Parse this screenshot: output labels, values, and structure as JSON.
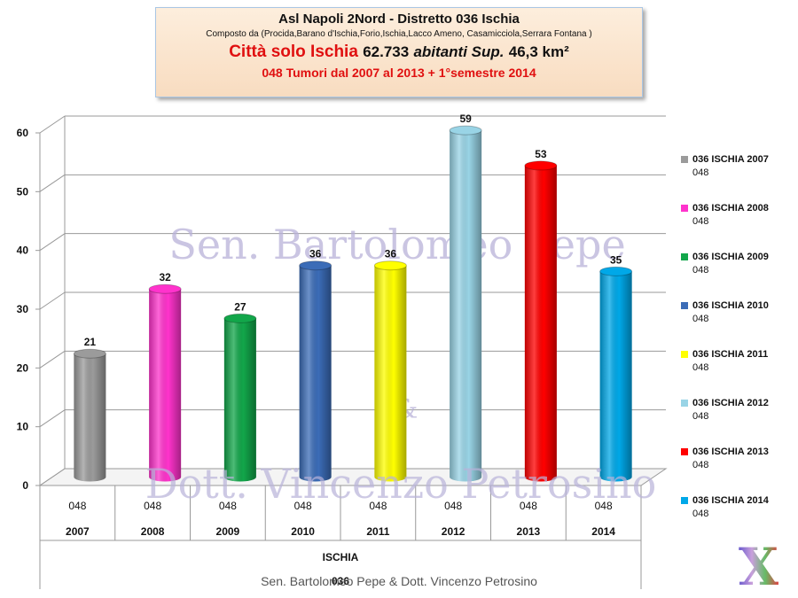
{
  "header": {
    "line1": "Asl Napoli  2Nord - Distretto 036 Ischia",
    "line2": "Composto da (Procida,Barano d'Ischia,Forio,Ischia,Lacco Ameno, Casamicciola,Serrara Fontana )",
    "line3_red": "Città solo Ischia",
    "line3_num": "62.733",
    "line3_ital": "abitanti Sup.",
    "line3_area": "46,3 km²",
    "line4": "048 Tumori  dal 2007 al 2013 + 1°semestre 2014"
  },
  "watermarks": {
    "top": "Sen. Bartolomeo Pepe",
    "amp": "&",
    "bottom": "Dott. Vincenzo Petrosino"
  },
  "footer": "Sen. Bartolomeo Pepe & Dott. Vincenzo Petrosino",
  "logo": "X",
  "chart_data": {
    "type": "bar",
    "yticks": [
      "0",
      "10",
      "20",
      "30",
      "40",
      "50",
      "60"
    ],
    "ylim": [
      0,
      60
    ],
    "grid": true,
    "legend_position": "right",
    "categories": [
      {
        "code": "048",
        "year": "2007"
      },
      {
        "code": "048",
        "year": "2008"
      },
      {
        "code": "048",
        "year": "2009"
      },
      {
        "code": "048",
        "year": "2010"
      },
      {
        "code": "048",
        "year": "2011"
      },
      {
        "code": "048",
        "year": "2012"
      },
      {
        "code": "048",
        "year": "2013"
      },
      {
        "code": "048",
        "year": "2014"
      }
    ],
    "group_labels": [
      "ISCHIA",
      "036"
    ],
    "series": [
      {
        "name": "036 ISCHIA 2007",
        "code": "048",
        "value": 21,
        "label": "21",
        "color": "#9b9b9b"
      },
      {
        "name": "036 ISCHIA 2008",
        "code": "048",
        "value": 32,
        "label": "32",
        "color": "#ff33cc"
      },
      {
        "name": "036 ISCHIA 2009",
        "code": "048",
        "value": 27,
        "label": "27",
        "color": "#12a64a"
      },
      {
        "name": "036 ISCHIA 2010",
        "code": "048",
        "value": 36,
        "label": "36",
        "color": "#3b6cb7"
      },
      {
        "name": "036 ISCHIA 2011",
        "code": "048",
        "value": 36,
        "label": "36",
        "color": "#ffff00"
      },
      {
        "name": "036 ISCHIA 2012",
        "code": "048",
        "value": 59,
        "label": "59",
        "color": "#99d4e6"
      },
      {
        "name": "036 ISCHIA 2013",
        "code": "048",
        "value": 53,
        "label": "53",
        "color": "#ff0000"
      },
      {
        "name": "036 ISCHIA 2014",
        "code": "048",
        "value": 35,
        "label": "35",
        "color": "#00a8e8"
      }
    ]
  }
}
